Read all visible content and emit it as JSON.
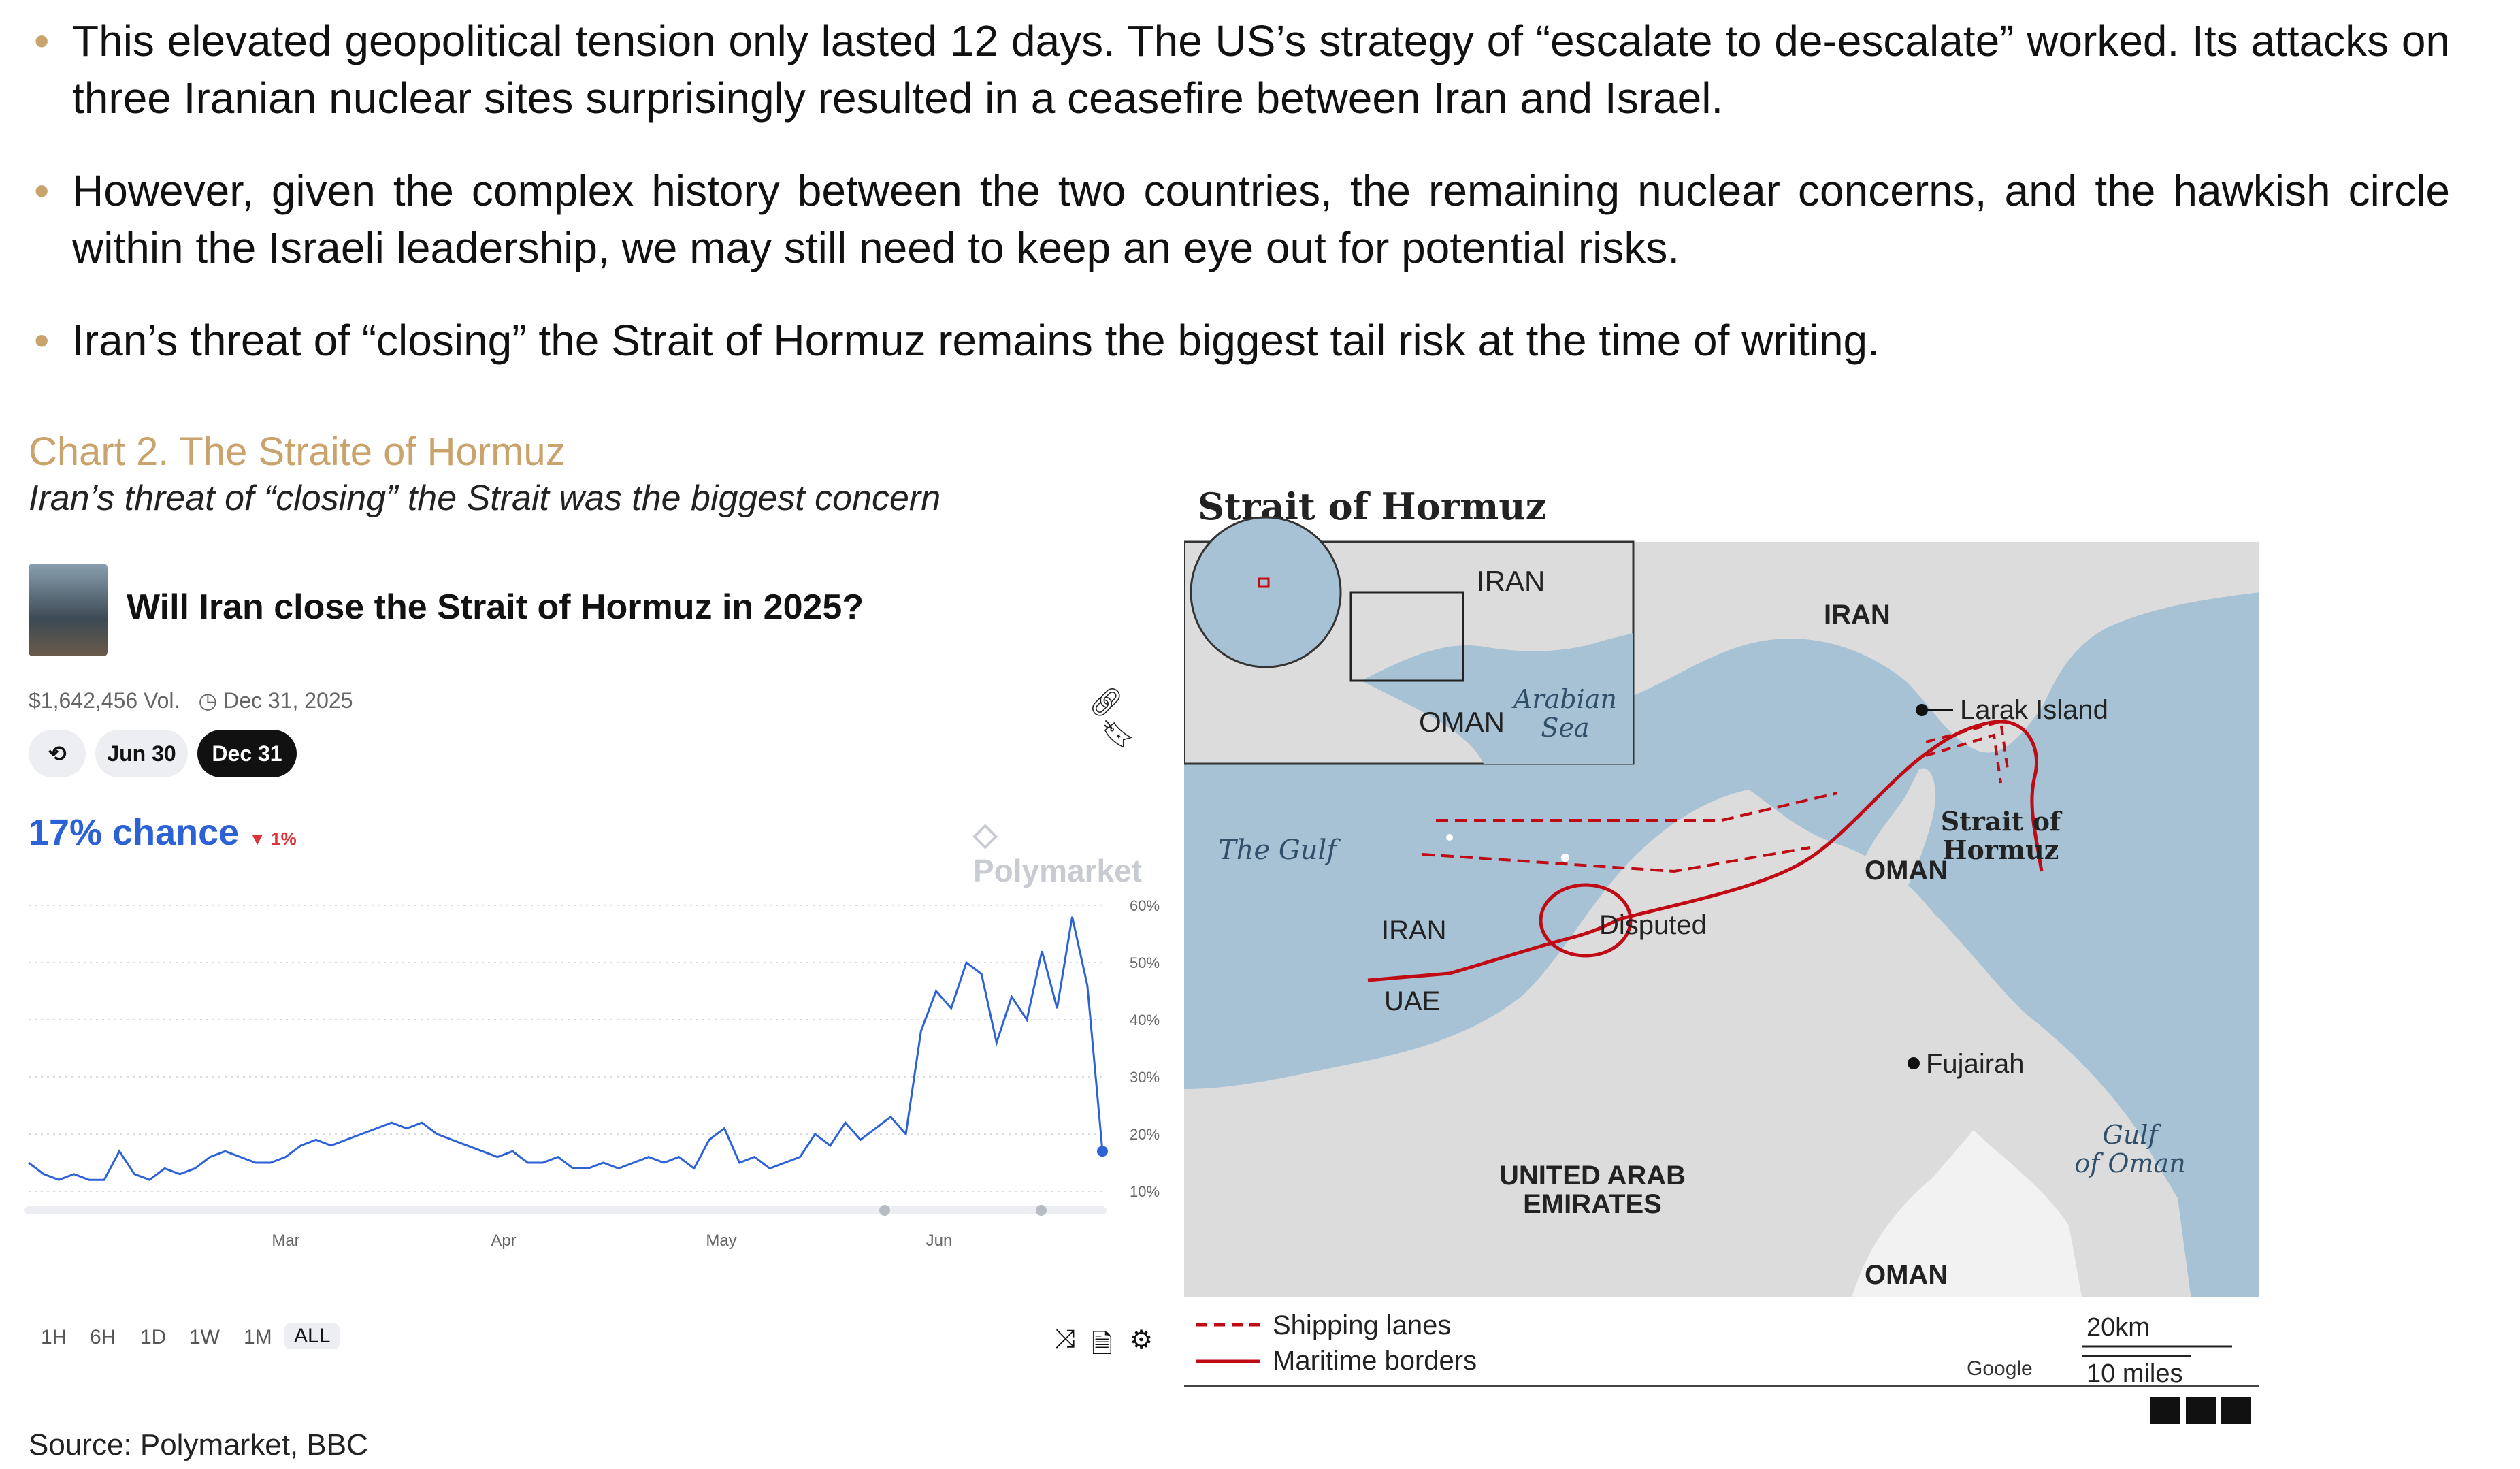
{
  "bullets": [
    "This elevated geopolitical tension only lasted 12 days. The US’s strategy of “escalate to de-escalate” worked. Its attacks on three Iranian nuclear sites surprisingly resulted in a ceasefire between Iran and Israel.",
    "However, given the complex history between the two countries, the remaining nuclear concerns, and the hawkish circle within the Israeli leadership, we may still need to keep an eye out for potential risks.",
    "Iran’s threat of “closing” the Strait of Hormuz remains the biggest tail risk at the time of writing."
  ],
  "chart_heading": {
    "title": "Chart 2. The Straite of Hormuz",
    "subtitle": "Iran’s threat of “closing” the Strait was the biggest concern"
  },
  "polymarket": {
    "question": "Will Iran close the Strait of Hormuz in 2025?",
    "volume": "$1,642,456 Vol.",
    "end_date": "Dec 31, 2025",
    "date_pills": [
      "Jun 30",
      "Dec 31"
    ],
    "selected_pill": "Dec 31",
    "chance": "17% chance",
    "change": "▼ 1%",
    "brand": "Polymarket",
    "ranges": [
      "1H",
      "6H",
      "1D",
      "1W",
      "1M",
      "ALL"
    ],
    "selected_range": "ALL",
    "accent": "#2d62d6",
    "down_color": "#e0323a"
  },
  "chart_data": {
    "type": "line",
    "title": "",
    "xlabel": "",
    "ylabel": "",
    "x_ticks": [
      "Mar",
      "Apr",
      "May",
      "Jun"
    ],
    "y_ticks": [
      "60%",
      "50%",
      "40%",
      "30%",
      "20%",
      "10%"
    ],
    "ylim": [
      10,
      60
    ],
    "grid": true,
    "series": [
      {
        "values": [
          15,
          13,
          12,
          13,
          12,
          12,
          17,
          13,
          12,
          14,
          13,
          14,
          16,
          17,
          16,
          15,
          15,
          16,
          18,
          19,
          18,
          19,
          20,
          21,
          22,
          21,
          22,
          20,
          19,
          18,
          17,
          16,
          17,
          15,
          15,
          16,
          14,
          14,
          15,
          14,
          15,
          16,
          15,
          16,
          14,
          19,
          21,
          15,
          16,
          14,
          15,
          16,
          20,
          18,
          22,
          19,
          21,
          23,
          20,
          38,
          45,
          42,
          50,
          48,
          36,
          44,
          40,
          52,
          42,
          58,
          46,
          17
        ]
      }
    ]
  },
  "map": {
    "title": "Strait of Hormuz",
    "labels": {
      "iran_top": "IRAN",
      "iran_inset": "IRAN",
      "oman_inset": "OMAN",
      "arabian_sea": "Arabian Sea",
      "larak": "Larak Island",
      "strait": "Strait of Hormuz",
      "the_gulf": "The Gulf",
      "oman_north": "OMAN",
      "iran_mid": "IRAN",
      "disputed": "Disputed",
      "uae_small": "UAE",
      "fujairah": "Fujairah",
      "gulf_of_oman": "Gulf of Oman",
      "uae": "UNITED ARAB EMIRATES",
      "oman_south": "OMAN"
    },
    "legend": {
      "shipping": "Shipping lanes",
      "borders": "Maritime borders"
    },
    "scale": {
      "km": "20km",
      "miles": "10 miles"
    },
    "credit": "Google",
    "brand": "BBC",
    "water_color": "#a7c2d5",
    "land_color": "#dcdcdc",
    "border_color": "#c00a14"
  },
  "source": "Source: Polymarket, BBC"
}
